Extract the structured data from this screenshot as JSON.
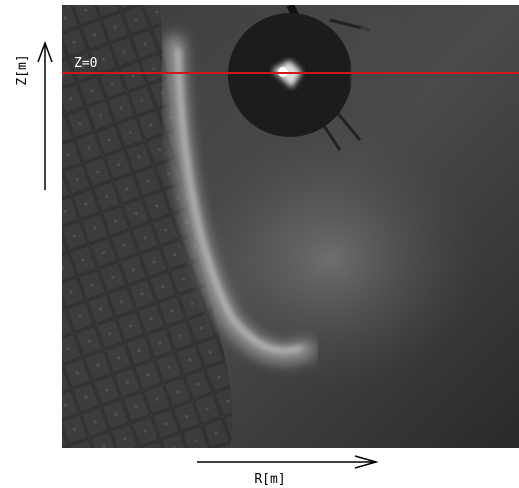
{
  "annotations": {
    "z_axis_label": "Z[m]",
    "z_zero_label": "Z=0",
    "r_axis_label": "R[m]"
  }
}
